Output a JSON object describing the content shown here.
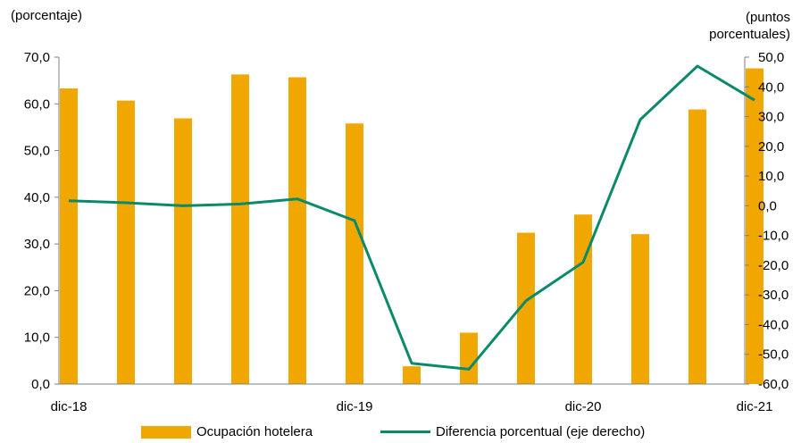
{
  "units": {
    "left": "(porcentaje)",
    "right_line1": "(puntos",
    "right_line2": "porcentuales)"
  },
  "colors": {
    "bar": "#F0A800",
    "line": "#0A8A6A",
    "axis": "#808080"
  },
  "chart_data": {
    "type": "bar",
    "title": "",
    "categories": [
      "dic-18",
      "",
      "",
      "",
      "",
      "dic-19",
      "",
      "",
      "",
      "dic-20",
      "",
      "",
      "dic-21"
    ],
    "x_tick_labels": [
      "dic-18",
      "dic-19",
      "dic-20",
      "dic-21"
    ],
    "series": [
      {
        "name": "Ocupación hotelera",
        "type": "bar",
        "axis": "left",
        "values": [
          63.3,
          60.7,
          56.9,
          66.3,
          65.7,
          55.8,
          3.8,
          11.0,
          32.4,
          36.3,
          32.1,
          58.8,
          67.6
        ]
      },
      {
        "name": "Diferencia porcentual (eje derecho)",
        "type": "line",
        "axis": "right",
        "values": [
          1.7,
          1.0,
          0.0,
          0.6,
          2.3,
          -5.0,
          -53.0,
          -55.0,
          -32.0,
          -19.0,
          29.0,
          47.0,
          35.5
        ]
      }
    ],
    "y_left": {
      "min": 0,
      "max": 70,
      "step": 10,
      "ticks": [
        "0,0",
        "10,0",
        "20,0",
        "30,0",
        "40,0",
        "50,0",
        "60,0",
        "70,0"
      ]
    },
    "y_right": {
      "min": -60,
      "max": 50,
      "step": 10,
      "ticks": [
        "-60,0",
        "-50,0",
        "-40,0",
        "-30,0",
        "-20,0",
        "-10,0",
        "0,0",
        "10,0",
        "20,0",
        "30,0",
        "40,0",
        "50,0"
      ]
    },
    "grid": false,
    "legend_position": "bottom"
  }
}
